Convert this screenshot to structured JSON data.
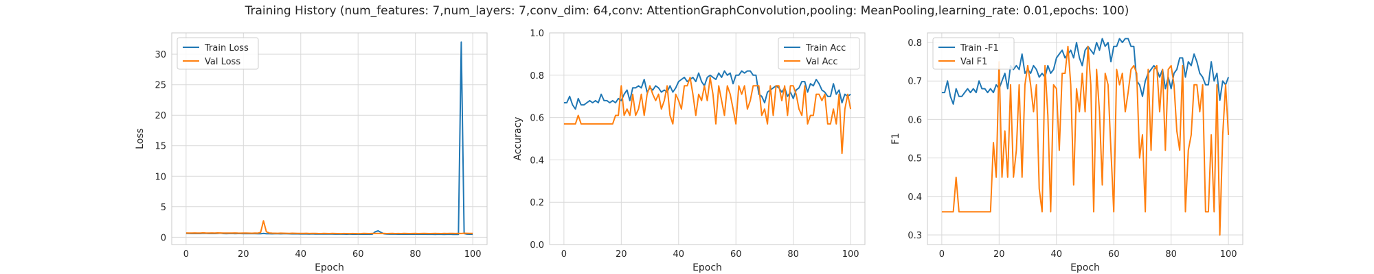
{
  "figure": {
    "suptitle": "Training History (num_features: 7,num_layers: 7,conv_dim: 64,conv: AttentionGraphConvolution,pooling: MeanPooling,learning_rate: 0.01,epochs: 100)"
  },
  "colors": {
    "series1": "#1f77b4",
    "series2": "#ff7f0e",
    "grid": "#d9d9d9",
    "spine": "#c8c8c8"
  },
  "chart_data": [
    {
      "type": "line",
      "xlabel": "Epoch",
      "ylabel": "Loss",
      "xlim": [
        -5,
        105
      ],
      "ylim": [
        -1.2,
        33.5
      ],
      "xticks": [
        0,
        20,
        40,
        60,
        80,
        100
      ],
      "yticks": [
        0,
        5,
        10,
        15,
        20,
        25,
        30
      ],
      "grid": true,
      "legend_position": "upper left",
      "series": [
        {
          "name": "Train Loss",
          "values": [
            0.62,
            0.61,
            0.6,
            0.6,
            0.61,
            0.6,
            0.64,
            0.62,
            0.6,
            0.61,
            0.6,
            0.63,
            0.66,
            0.6,
            0.59,
            0.6,
            0.61,
            0.59,
            0.6,
            0.6,
            0.59,
            0.6,
            0.58,
            0.59,
            0.58,
            0.57,
            0.56,
            0.62,
            0.57,
            0.56,
            0.55,
            0.56,
            0.56,
            0.55,
            0.57,
            0.56,
            0.55,
            0.54,
            0.55,
            0.54,
            0.53,
            0.54,
            0.53,
            0.52,
            0.54,
            0.52,
            0.53,
            0.52,
            0.51,
            0.52,
            0.53,
            0.51,
            0.5,
            0.51,
            0.5,
            0.5,
            0.49,
            0.5,
            0.49,
            0.5,
            0.48,
            0.49,
            0.5,
            0.48,
            0.47,
            0.5,
            0.9,
            1.05,
            0.8,
            0.55,
            0.52,
            0.5,
            0.51,
            0.5,
            0.49,
            0.5,
            0.49,
            0.48,
            0.5,
            0.49,
            0.48,
            0.47,
            0.48,
            0.49,
            0.47,
            0.48,
            0.47,
            0.46,
            0.48,
            0.47,
            0.46,
            0.47,
            0.48,
            0.46,
            0.47,
            0.46,
            32.0,
            0.6,
            0.5,
            0.48,
            0.47
          ]
        },
        {
          "name": "Val Loss",
          "values": [
            0.7,
            0.68,
            0.67,
            0.7,
            0.69,
            0.68,
            0.72,
            0.69,
            0.68,
            0.7,
            0.69,
            0.71,
            0.7,
            0.68,
            0.67,
            0.69,
            0.68,
            0.7,
            0.67,
            0.66,
            0.68,
            0.67,
            0.66,
            0.65,
            0.67,
            0.66,
            0.8,
            2.7,
            0.9,
            0.7,
            0.66,
            0.65,
            0.64,
            0.66,
            0.65,
            0.64,
            0.63,
            0.65,
            0.64,
            0.62,
            0.63,
            0.62,
            0.64,
            0.61,
            0.62,
            0.63,
            0.61,
            0.6,
            0.62,
            0.61,
            0.6,
            0.62,
            0.61,
            0.6,
            0.59,
            0.61,
            0.6,
            0.59,
            0.61,
            0.6,
            0.59,
            0.6,
            0.62,
            0.61,
            0.6,
            0.62,
            0.63,
            0.62,
            0.61,
            0.62,
            0.6,
            0.61,
            0.62,
            0.6,
            0.61,
            0.6,
            0.62,
            0.61,
            0.6,
            0.61,
            0.62,
            0.6,
            0.61,
            0.62,
            0.61,
            0.6,
            0.61,
            0.62,
            0.61,
            0.6,
            0.62,
            0.61,
            0.63,
            0.62,
            0.61,
            0.62,
            0.61,
            0.65,
            0.64,
            0.63,
            0.62
          ]
        }
      ]
    },
    {
      "type": "line",
      "xlabel": "Epoch",
      "ylabel": "Accuracy",
      "xlim": [
        -5,
        105
      ],
      "ylim": [
        0.0,
        1.0
      ],
      "xticks": [
        0,
        20,
        40,
        60,
        80,
        100
      ],
      "yticks": [
        0.0,
        0.2,
        0.4,
        0.6,
        0.8,
        1.0
      ],
      "grid": true,
      "legend_position": "upper right",
      "series": [
        {
          "name": "Train Acc",
          "values": [
            0.67,
            0.67,
            0.7,
            0.66,
            0.64,
            0.69,
            0.66,
            0.66,
            0.67,
            0.68,
            0.67,
            0.68,
            0.67,
            0.71,
            0.68,
            0.68,
            0.67,
            0.68,
            0.67,
            0.69,
            0.68,
            0.71,
            0.73,
            0.68,
            0.74,
            0.74,
            0.75,
            0.74,
            0.78,
            0.72,
            0.74,
            0.73,
            0.75,
            0.74,
            0.72,
            0.73,
            0.72,
            0.75,
            0.72,
            0.74,
            0.77,
            0.78,
            0.79,
            0.77,
            0.78,
            0.79,
            0.77,
            0.81,
            0.77,
            0.75,
            0.79,
            0.8,
            0.79,
            0.78,
            0.81,
            0.79,
            0.82,
            0.8,
            0.81,
            0.76,
            0.8,
            0.8,
            0.82,
            0.81,
            0.82,
            0.82,
            0.8,
            0.8,
            0.71,
            0.7,
            0.67,
            0.72,
            0.73,
            0.74,
            0.75,
            0.74,
            0.72,
            0.74,
            0.7,
            0.72,
            0.69,
            0.73,
            0.74,
            0.77,
            0.77,
            0.72,
            0.76,
            0.75,
            0.78,
            0.76,
            0.73,
            0.72,
            0.7,
            0.7,
            0.76,
            0.71,
            0.73,
            0.67,
            0.71,
            0.7,
            0.71
          ]
        },
        {
          "name": "Val Acc",
          "values": [
            0.57,
            0.57,
            0.57,
            0.57,
            0.57,
            0.61,
            0.57,
            0.57,
            0.57,
            0.57,
            0.57,
            0.57,
            0.57,
            0.57,
            0.57,
            0.57,
            0.57,
            0.57,
            0.61,
            0.61,
            0.75,
            0.61,
            0.64,
            0.61,
            0.71,
            0.61,
            0.64,
            0.71,
            0.61,
            0.71,
            0.75,
            0.71,
            0.68,
            0.71,
            0.64,
            0.68,
            0.75,
            0.61,
            0.57,
            0.71,
            0.68,
            0.64,
            0.75,
            0.75,
            0.79,
            0.71,
            0.61,
            0.71,
            0.68,
            0.75,
            0.68,
            0.79,
            0.71,
            0.57,
            0.75,
            0.68,
            0.61,
            0.75,
            0.71,
            0.64,
            0.57,
            0.75,
            0.71,
            0.75,
            0.64,
            0.68,
            0.75,
            0.75,
            0.75,
            0.61,
            0.64,
            0.57,
            0.75,
            0.61,
            0.75,
            0.75,
            0.68,
            0.75,
            0.61,
            0.75,
            0.75,
            0.71,
            0.64,
            0.61,
            0.75,
            0.57,
            0.61,
            0.61,
            0.71,
            0.71,
            0.68,
            0.71,
            0.57,
            0.57,
            0.64,
            0.57,
            0.71,
            0.43,
            0.64,
            0.71,
            0.64
          ]
        }
      ]
    },
    {
      "type": "line",
      "xlabel": "Epoch",
      "ylabel": "F1",
      "xlim": [
        -5,
        105
      ],
      "ylim": [
        0.275,
        0.825
      ],
      "xticks": [
        0,
        20,
        40,
        60,
        80,
        100
      ],
      "yticks": [
        0.3,
        0.4,
        0.5,
        0.6,
        0.7,
        0.8
      ],
      "grid": true,
      "legend_position": "upper left",
      "series": [
        {
          "name": "Train -F1",
          "values": [
            0.67,
            0.67,
            0.7,
            0.66,
            0.64,
            0.68,
            0.66,
            0.66,
            0.67,
            0.68,
            0.67,
            0.68,
            0.67,
            0.7,
            0.68,
            0.68,
            0.67,
            0.68,
            0.67,
            0.69,
            0.68,
            0.7,
            0.72,
            0.68,
            0.74,
            0.73,
            0.74,
            0.73,
            0.77,
            0.72,
            0.73,
            0.72,
            0.74,
            0.73,
            0.71,
            0.72,
            0.71,
            0.74,
            0.72,
            0.73,
            0.76,
            0.77,
            0.78,
            0.76,
            0.77,
            0.78,
            0.76,
            0.8,
            0.76,
            0.74,
            0.78,
            0.79,
            0.78,
            0.77,
            0.8,
            0.78,
            0.81,
            0.79,
            0.8,
            0.75,
            0.79,
            0.79,
            0.81,
            0.8,
            0.81,
            0.81,
            0.79,
            0.79,
            0.7,
            0.69,
            0.66,
            0.7,
            0.72,
            0.73,
            0.74,
            0.73,
            0.71,
            0.73,
            0.68,
            0.71,
            0.68,
            0.72,
            0.73,
            0.76,
            0.76,
            0.71,
            0.75,
            0.74,
            0.77,
            0.75,
            0.72,
            0.71,
            0.69,
            0.69,
            0.75,
            0.7,
            0.72,
            0.65,
            0.7,
            0.69,
            0.71
          ]
        },
        {
          "name": "Val F1",
          "values": [
            0.36,
            0.36,
            0.36,
            0.36,
            0.36,
            0.45,
            0.36,
            0.36,
            0.36,
            0.36,
            0.36,
            0.36,
            0.36,
            0.36,
            0.36,
            0.36,
            0.36,
            0.36,
            0.54,
            0.45,
            0.75,
            0.45,
            0.57,
            0.45,
            0.69,
            0.45,
            0.52,
            0.69,
            0.45,
            0.69,
            0.74,
            0.69,
            0.62,
            0.69,
            0.42,
            0.36,
            0.74,
            0.61,
            0.36,
            0.69,
            0.68,
            0.52,
            0.72,
            0.72,
            0.79,
            0.69,
            0.43,
            0.68,
            0.62,
            0.72,
            0.62,
            0.79,
            0.69,
            0.36,
            0.73,
            0.62,
            0.43,
            0.72,
            0.69,
            0.52,
            0.36,
            0.73,
            0.69,
            0.72,
            0.62,
            0.67,
            0.73,
            0.74,
            0.72,
            0.5,
            0.56,
            0.36,
            0.73,
            0.52,
            0.73,
            0.74,
            0.62,
            0.73,
            0.52,
            0.73,
            0.74,
            0.69,
            0.57,
            0.52,
            0.74,
            0.36,
            0.52,
            0.56,
            0.69,
            0.69,
            0.62,
            0.69,
            0.36,
            0.36,
            0.56,
            0.36,
            0.69,
            0.3,
            0.56,
            0.69,
            0.56
          ]
        }
      ]
    }
  ]
}
